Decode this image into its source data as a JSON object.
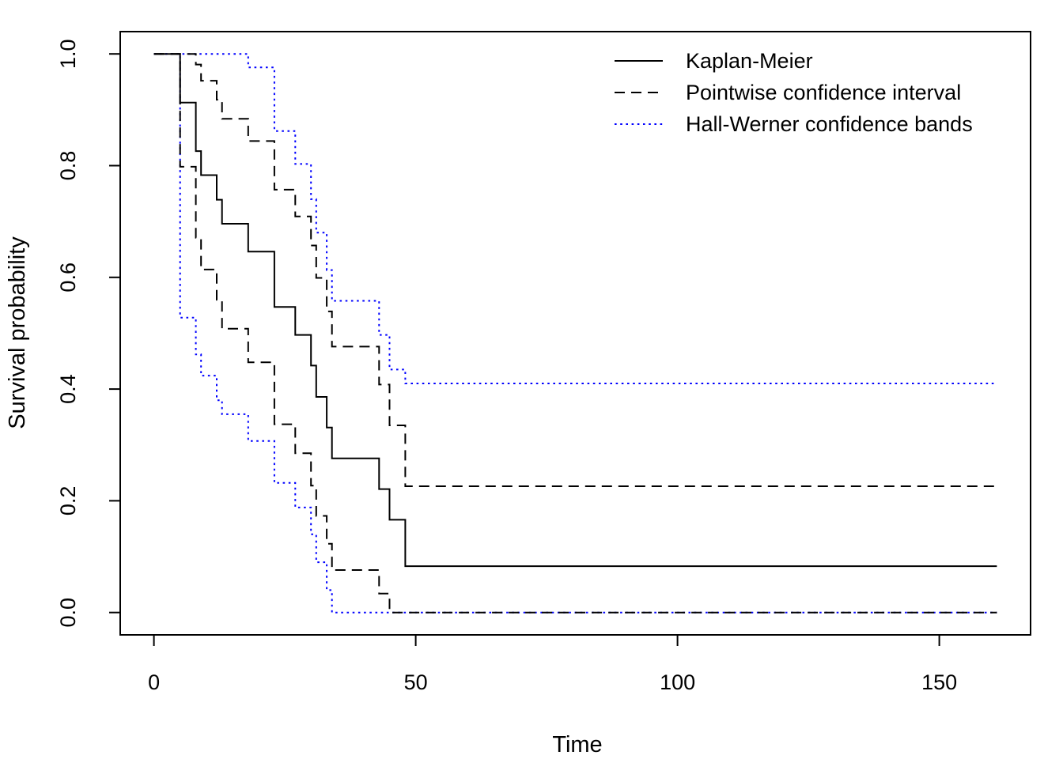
{
  "figure": {
    "background": "#ffffff",
    "axis_color": "#000000",
    "legend": [
      {
        "label": "Kaplan-Meier",
        "style": "solid",
        "color": "#000000"
      },
      {
        "label": "Pointwise confidence interval",
        "style": "dashed",
        "color": "#000000"
      },
      {
        "label": "Hall-Werner confidence bands",
        "style": "dotted",
        "color": "#0000ff"
      }
    ]
  },
  "chart_data": {
    "type": "line",
    "subtype": "step-survival-curve",
    "title": "",
    "xlabel": "Time",
    "ylabel": "Survival probability",
    "xlim": [
      0,
      161
    ],
    "ylim": [
      0.0,
      1.0
    ],
    "x_ticks": [
      0,
      50,
      100,
      150
    ],
    "x_tick_labels": [
      "0",
      "50",
      "100",
      "150"
    ],
    "y_ticks": [
      0.0,
      0.2,
      0.4,
      0.6,
      0.8,
      1.0
    ],
    "y_tick_labels": [
      "0.0",
      "0.2",
      "0.4",
      "0.6",
      "0.8",
      "1.0"
    ],
    "grid": false,
    "legend_position": "top-right",
    "step": true,
    "end_time": 161,
    "series": [
      {
        "name": "Hall-Werner upper band",
        "color": "#0000ff",
        "style": "dotted",
        "x": [
          0,
          18,
          23,
          27,
          30,
          31,
          33,
          34,
          43,
          45,
          48
        ],
        "y": [
          1.0,
          0.976,
          0.862,
          0.803,
          0.74,
          0.68,
          0.613,
          0.558,
          0.497,
          0.435,
          0.41
        ]
      },
      {
        "name": "Hall-Werner lower band",
        "color": "#0000ff",
        "style": "dotted",
        "x": [
          0,
          5,
          8,
          9,
          12,
          13,
          18,
          23,
          27,
          30,
          31,
          33,
          34
        ],
        "y": [
          1.0,
          0.528,
          0.462,
          0.424,
          0.38,
          0.355,
          0.307,
          0.232,
          0.188,
          0.14,
          0.09,
          0.04,
          0.0
        ]
      },
      {
        "name": "Pointwise CI upper",
        "color": "#000000",
        "style": "dashed",
        "x": [
          0,
          8,
          9,
          12,
          13,
          18,
          23,
          27,
          30,
          31,
          33,
          34,
          43,
          45,
          48
        ],
        "y": [
          1.0,
          0.981,
          0.952,
          0.918,
          0.884,
          0.844,
          0.757,
          0.709,
          0.657,
          0.599,
          0.539,
          0.476,
          0.408,
          0.335,
          0.226
        ]
      },
      {
        "name": "Pointwise CI lower",
        "color": "#000000",
        "style": "dashed",
        "x": [
          0,
          5,
          8,
          9,
          12,
          13,
          18,
          23,
          27,
          30,
          31,
          33,
          34,
          43,
          45
        ],
        "y": [
          1.0,
          0.798,
          0.671,
          0.614,
          0.56,
          0.508,
          0.448,
          0.337,
          0.285,
          0.227,
          0.173,
          0.123,
          0.076,
          0.034,
          0.0
        ]
      },
      {
        "name": "Kaplan-Meier estimate",
        "color": "#000000",
        "style": "solid",
        "x": [
          0,
          5,
          8,
          9,
          12,
          13,
          18,
          23,
          27,
          30,
          31,
          33,
          34,
          43,
          45,
          48
        ],
        "y": [
          1.0,
          0.913,
          0.826,
          0.783,
          0.739,
          0.696,
          0.646,
          0.547,
          0.497,
          0.442,
          0.386,
          0.331,
          0.276,
          0.221,
          0.166,
          0.083
        ]
      }
    ]
  }
}
